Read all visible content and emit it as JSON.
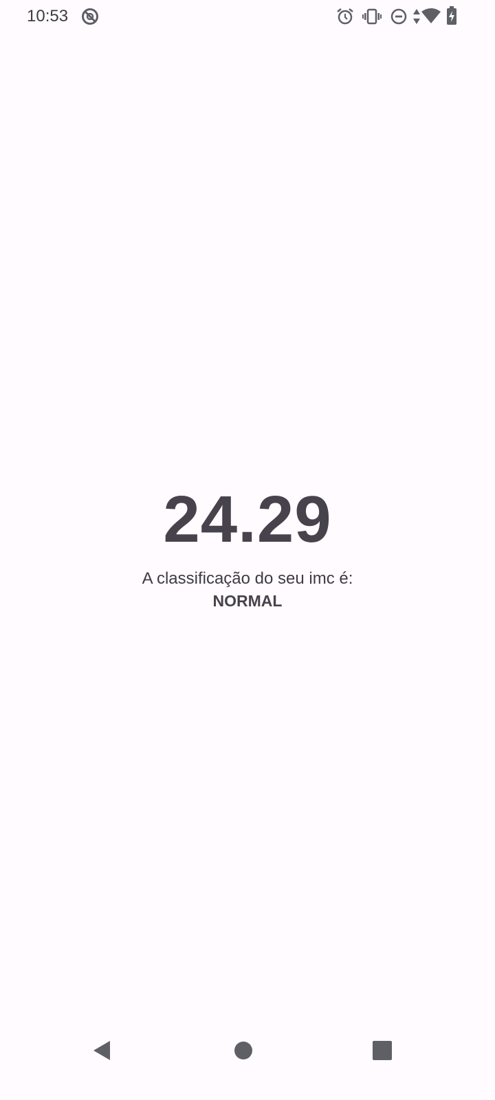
{
  "status_bar": {
    "time": "10:53",
    "icons": [
      "no-sync-icon",
      "alarm-icon",
      "vibrate-icon",
      "do-not-disturb-icon",
      "data-arrows-icon",
      "wifi-icon",
      "battery-charging-icon"
    ]
  },
  "result": {
    "bmi_value": "24.29",
    "caption": "A classificação do seu imc é:",
    "classification": "NORMAL"
  },
  "nav_bar": {
    "buttons": [
      "back-icon",
      "home-icon",
      "recents-icon"
    ]
  },
  "colors": {
    "background": "#fffbfe",
    "text": "#46434c",
    "icons": "#5f5f66"
  }
}
